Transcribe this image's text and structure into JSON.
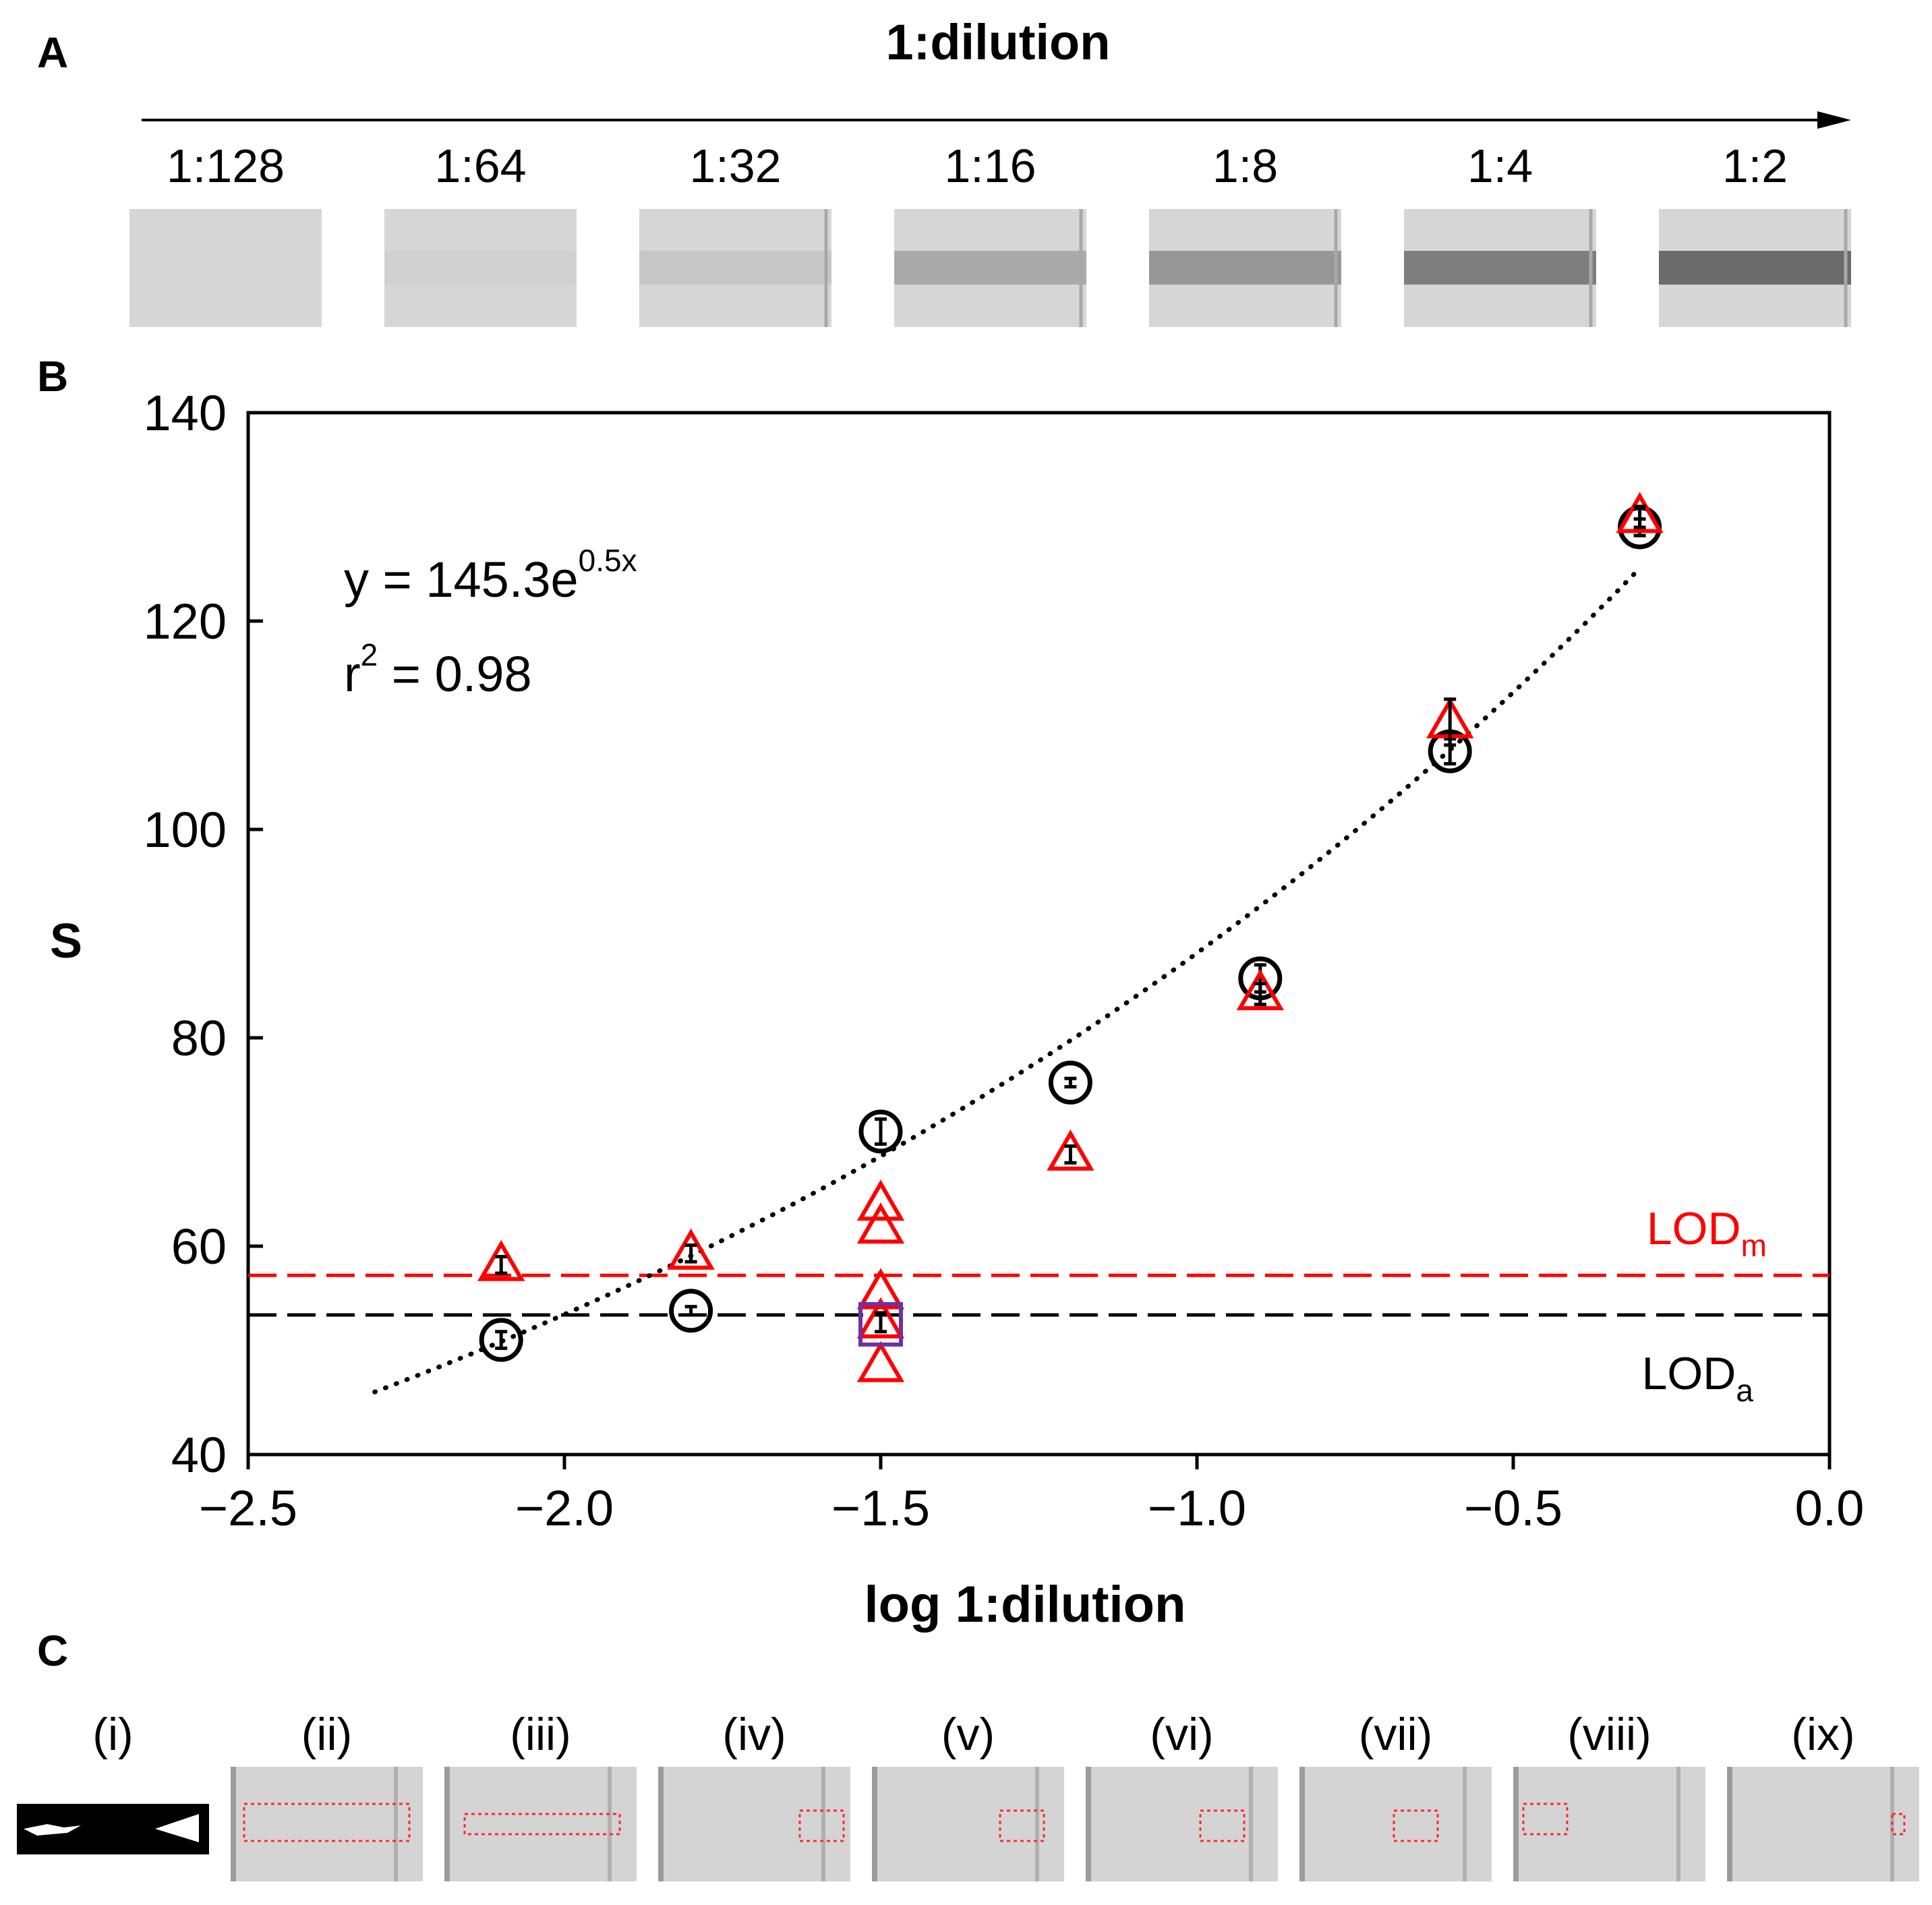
{
  "panel_a": {
    "label": "A",
    "title": "1:dilution",
    "dilutions": [
      "1:128",
      "1:64",
      "1:32",
      "1:16",
      "1:8",
      "1:4",
      "1:2"
    ],
    "band_darkness": [
      0.0,
      0.05,
      0.12,
      0.35,
      0.5,
      0.7,
      0.85
    ]
  },
  "panel_b": {
    "label": "B"
  },
  "panel_c": {
    "label": "C",
    "strips": [
      "(i)",
      "(ii)",
      "(iii)",
      "(iv)",
      "(v)",
      "(vi)",
      "(vii)",
      "(viii)",
      "(ix)"
    ]
  },
  "chart_data": {
    "type": "scatter",
    "title": "",
    "xlabel": "log 1:dilution",
    "ylabel": "S",
    "xlim": [
      -2.5,
      0.0
    ],
    "ylim": [
      40,
      140
    ],
    "xticks": [
      "−2.5",
      "−2.0",
      "−1.5",
      "−1.0",
      "−0.5",
      "0.0"
    ],
    "yticks": [
      "40",
      "60",
      "80",
      "100",
      "120",
      "140"
    ],
    "grid": false,
    "equation": {
      "y": "y = 145.3e",
      "exp": "0.5x",
      "r": "r",
      "r_sup": "2",
      "r_val": " = 0.98"
    },
    "series": [
      {
        "name": "circles",
        "marker": "circle",
        "color": "#000000",
        "x": [
          -2.1,
          -1.8,
          -1.5,
          -1.2,
          -0.9,
          -0.6,
          -0.3
        ],
        "y": [
          51,
          53.8,
          71,
          75.7,
          85.7,
          107.5,
          129
        ],
        "err": [
          0.8,
          0.4,
          1.2,
          0.4,
          1.3,
          1.2,
          0.8
        ]
      },
      {
        "name": "triangles",
        "marker": "triangle",
        "color": "#ff0000",
        "x": [
          -2.1,
          -1.8,
          -1.5,
          -1.5,
          -1.5,
          -1.5,
          -1.5,
          -1.2,
          -0.9,
          -0.6,
          -0.3
        ],
        "y": [
          58.2,
          59.3,
          64,
          61.8,
          55.5,
          52.7,
          48.5,
          68.8,
          84.2,
          110.3,
          130
        ],
        "err": [
          0.8,
          0.8,
          0,
          0,
          0,
          0.9,
          0,
          0.8,
          1.0,
          2.2,
          1.0
        ]
      },
      {
        "name": "square",
        "marker": "square",
        "color": "#7030a0",
        "x": [
          -1.5
        ],
        "y": [
          52.5
        ],
        "err": [
          0
        ]
      }
    ],
    "trendline": {
      "a": 145.3,
      "b": 0.5,
      "x_start": -2.3,
      "x_end": -0.3,
      "style": "dotted"
    },
    "lod_lines": [
      {
        "name": "LOD",
        "sub": "m",
        "value": 57.2,
        "color": "#ff0000"
      },
      {
        "name": "LOD",
        "sub": "a",
        "value": 53.4,
        "color": "#000000"
      }
    ]
  }
}
